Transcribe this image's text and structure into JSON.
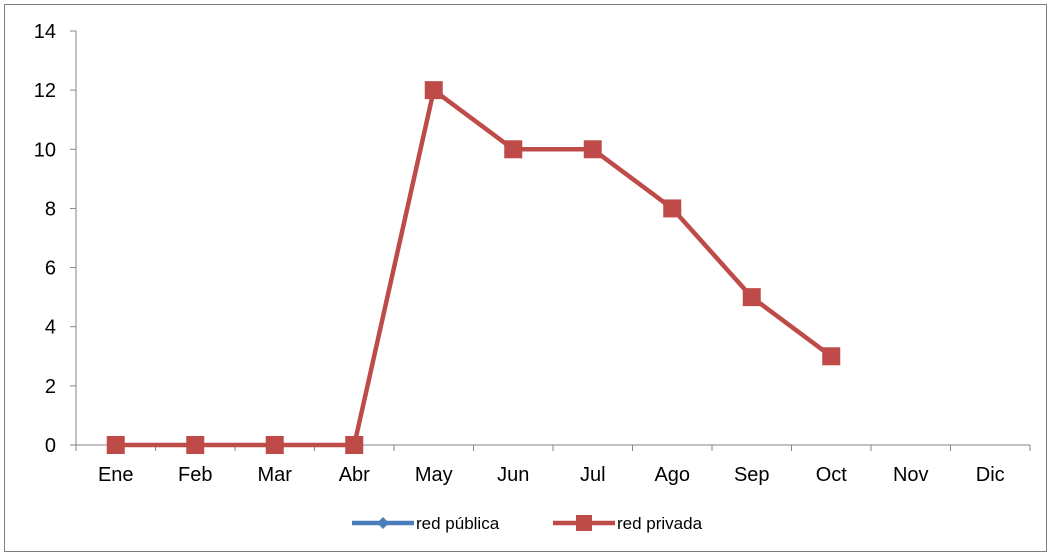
{
  "chart_data": {
    "type": "line",
    "categories": [
      "Ene",
      "Feb",
      "Mar",
      "Abr",
      "May",
      "Jun",
      "Jul",
      "Ago",
      "Sep",
      "Oct",
      "Nov",
      "Dic"
    ],
    "ylim": [
      0,
      14
    ],
    "yticks": [
      0,
      2,
      4,
      6,
      8,
      10,
      12,
      14
    ],
    "grid": false,
    "legend_position": "bottom",
    "series": [
      {
        "name": "red pública",
        "color": "#4a7ebb",
        "marker": "diamond",
        "values": [
          null,
          null,
          null,
          null,
          null,
          null,
          null,
          null,
          null,
          null,
          null,
          null
        ]
      },
      {
        "name": "red privada",
        "color": "#be4b48",
        "marker": "square",
        "values": [
          0,
          0,
          0,
          0,
          12,
          10,
          10,
          8,
          5,
          3,
          null,
          null
        ]
      }
    ]
  }
}
